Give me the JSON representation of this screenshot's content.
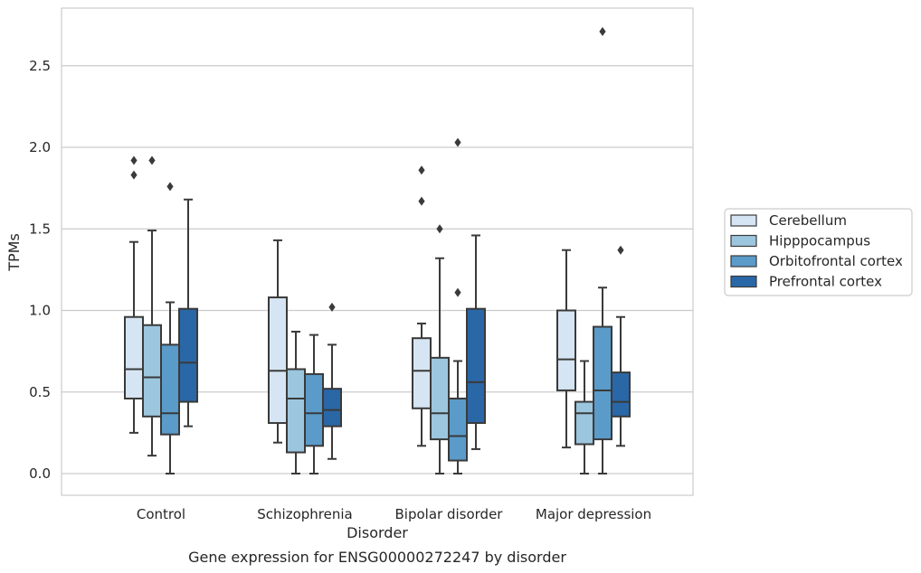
{
  "chart_data": {
    "type": "boxplot",
    "xlabel": "Disorder",
    "ylabel": "TPMs",
    "caption": "Gene expression for ENSG00000272247 by disorder",
    "ylim": [
      -0.13,
      2.85
    ],
    "yticks": [
      0.0,
      0.5,
      1.0,
      1.5,
      2.0,
      2.5
    ],
    "ytick_labels": [
      "0.0",
      "0.5",
      "1.0",
      "1.5",
      "2.0",
      "2.5"
    ],
    "grid": "horizontal",
    "legend_position": "right",
    "categories": [
      "Control",
      "Schizophrenia",
      "Bipolar disorder",
      "Major depression"
    ],
    "series": [
      {
        "name": "Cerebellum",
        "color": "#d6e5f3",
        "boxes": [
          {
            "whislo": 0.25,
            "q1": 0.46,
            "med": 0.64,
            "q3": 0.96,
            "whishi": 1.42,
            "fliers": [
              1.83,
              1.92
            ]
          },
          {
            "whislo": 0.19,
            "q1": 0.31,
            "med": 0.63,
            "q3": 1.08,
            "whishi": 1.43,
            "fliers": []
          },
          {
            "whislo": 0.17,
            "q1": 0.4,
            "med": 0.63,
            "q3": 0.83,
            "whishi": 0.92,
            "fliers": [
              1.67,
              1.86
            ]
          },
          {
            "whislo": 0.16,
            "q1": 0.51,
            "med": 0.7,
            "q3": 1.0,
            "whishi": 1.37,
            "fliers": []
          }
        ]
      },
      {
        "name": "Hipppocampus",
        "color": "#9cc6de",
        "boxes": [
          {
            "whislo": 0.11,
            "q1": 0.35,
            "med": 0.59,
            "q3": 0.91,
            "whishi": 1.49,
            "fliers": [
              1.92
            ]
          },
          {
            "whislo": 0.0,
            "q1": 0.13,
            "med": 0.46,
            "q3": 0.64,
            "whishi": 0.87,
            "fliers": []
          },
          {
            "whislo": 0.0,
            "q1": 0.21,
            "med": 0.37,
            "q3": 0.71,
            "whishi": 1.32,
            "fliers": [
              1.5
            ]
          },
          {
            "whislo": 0.0,
            "q1": 0.18,
            "med": 0.37,
            "q3": 0.44,
            "whishi": 0.69,
            "fliers": []
          }
        ]
      },
      {
        "name": "Orbitofrontal cortex",
        "color": "#5a9bc9",
        "boxes": [
          {
            "whislo": 0.0,
            "q1": 0.24,
            "med": 0.37,
            "q3": 0.79,
            "whishi": 1.05,
            "fliers": [
              1.76
            ]
          },
          {
            "whislo": 0.0,
            "q1": 0.17,
            "med": 0.37,
            "q3": 0.61,
            "whishi": 0.85,
            "fliers": []
          },
          {
            "whislo": 0.0,
            "q1": 0.08,
            "med": 0.23,
            "q3": 0.46,
            "whishi": 0.69,
            "fliers": [
              1.11,
              2.03
            ]
          },
          {
            "whislo": 0.0,
            "q1": 0.21,
            "med": 0.51,
            "q3": 0.9,
            "whishi": 1.14,
            "fliers": [
              2.71
            ]
          }
        ]
      },
      {
        "name": "Prefrontal cortex",
        "color": "#2a67a7",
        "boxes": [
          {
            "whislo": 0.29,
            "q1": 0.44,
            "med": 0.68,
            "q3": 1.01,
            "whishi": 1.68,
            "fliers": []
          },
          {
            "whislo": 0.09,
            "q1": 0.29,
            "med": 0.39,
            "q3": 0.52,
            "whishi": 0.79,
            "fliers": [
              1.02
            ]
          },
          {
            "whislo": 0.15,
            "q1": 0.31,
            "med": 0.56,
            "q3": 1.01,
            "whishi": 1.46,
            "fliers": []
          },
          {
            "whislo": 0.17,
            "q1": 0.35,
            "med": 0.44,
            "q3": 0.62,
            "whishi": 0.96,
            "fliers": [
              1.37
            ]
          }
        ]
      }
    ]
  }
}
